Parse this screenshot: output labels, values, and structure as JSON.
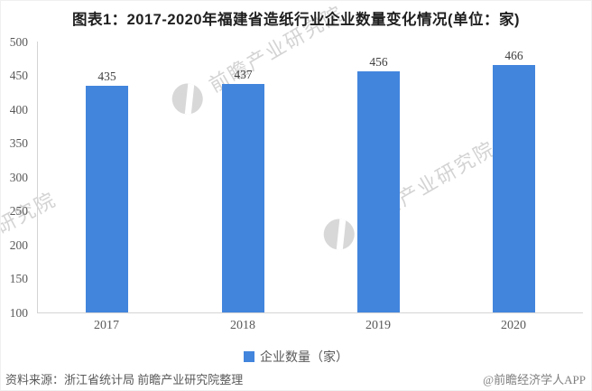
{
  "title": "图表1：2017-2020年福建省造纸行业企业数量变化情况(单位：家)",
  "chart_data": {
    "type": "bar",
    "title": "图表1：2017-2020年福建省造纸行业企业数量变化情况(单位：家)",
    "categories": [
      "2017",
      "2018",
      "2019",
      "2020"
    ],
    "values": [
      435,
      437,
      456,
      466
    ],
    "series_name": "企业数量（家）",
    "unit": "家",
    "xlabel": "",
    "ylabel": "",
    "ylim": [
      100,
      500
    ],
    "ytick_interval": 50,
    "yticks": [
      500,
      450,
      400,
      350,
      300,
      250,
      200,
      150,
      100
    ],
    "bar_color": "#4285DD",
    "grid": false,
    "legend_position": "bottom"
  },
  "legend": {
    "label": "企业数量（家）",
    "marker_color": "#4285DD"
  },
  "watermark": {
    "text": "前瞻产业研究院"
  },
  "footer": {
    "source": "资料来源：浙江省统计局 前瞻产业研究院整理",
    "credit": "@前瞻经济学人APP"
  }
}
